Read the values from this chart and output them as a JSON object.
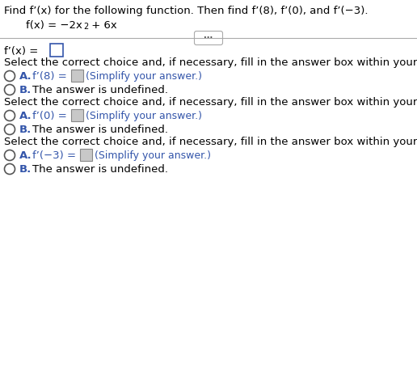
{
  "bg_color": "#ffffff",
  "text_color": "#000000",
  "blue_color": "#3355AA",
  "gray_box_color": "#c8c8c8",
  "title_line1": "Find f’(x) for the following function. Then find f’(8), f’(0), and f’(−3).",
  "select_text": "Select the correct choice and, if necessary, fill in the answer box within your choice.",
  "simplify": "(Simplify your answer.)",
  "font_size_title": 9.5,
  "font_size_body": 9.5,
  "font_size_option": 9.5,
  "font_size_simplify": 9.0,
  "font_size_super": 7.0,
  "line_color": "#aaaaaa",
  "circle_edge": "#555555",
  "box_border_fprime": "#3355AA",
  "box_border_gray": "#888888"
}
